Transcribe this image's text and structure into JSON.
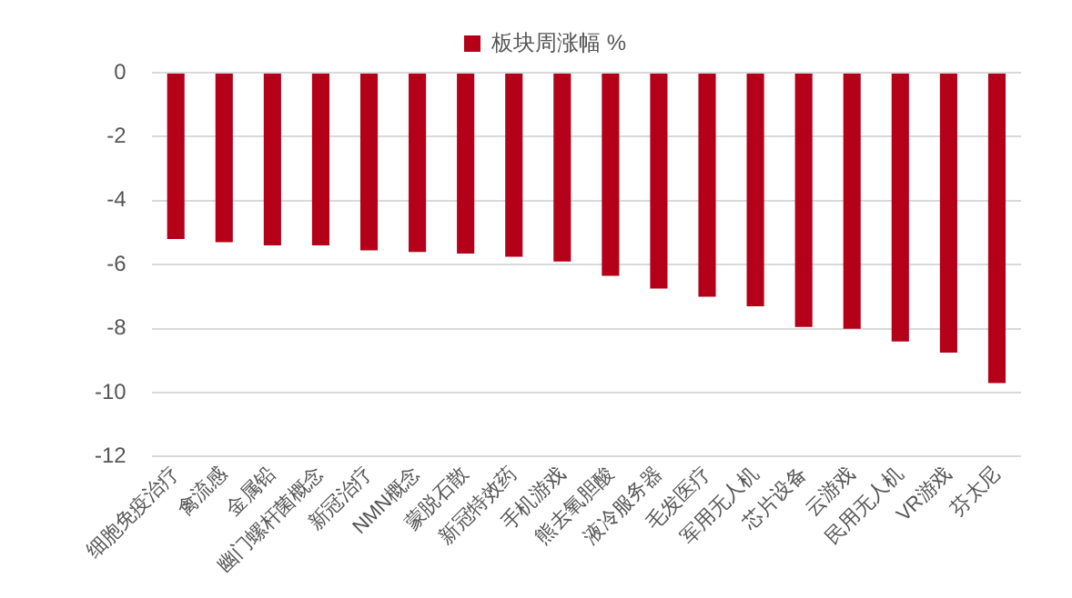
{
  "chart_data": {
    "type": "bar",
    "categories": [
      "细胞免疫治疗",
      "禽流感",
      "金属铅",
      "幽门螺杆菌概念",
      "新冠治疗",
      "NMN概念",
      "蒙脱石散",
      "新冠特效药",
      "手机游戏",
      "熊去氧胆酸",
      "液冷服务器",
      "毛发医疗",
      "军用无人机",
      "芯片设备",
      "云游戏",
      "民用无人机",
      "VR游戏",
      "芬太尼"
    ],
    "series": [
      {
        "name": "板块周涨幅 %",
        "color": "#b5001a",
        "values": [
          -5.2,
          -5.3,
          -5.4,
          -5.4,
          -5.55,
          -5.6,
          -5.65,
          -5.75,
          -5.9,
          -6.35,
          -6.75,
          -7.0,
          -7.3,
          -7.95,
          -8.0,
          -8.4,
          -8.75,
          -9.7
        ]
      }
    ],
    "ylim": [
      -12,
      0
    ],
    "yticks": [
      0,
      -2,
      -4,
      -6,
      -8,
      -10,
      -12
    ],
    "grid": "y",
    "legend": "top"
  }
}
